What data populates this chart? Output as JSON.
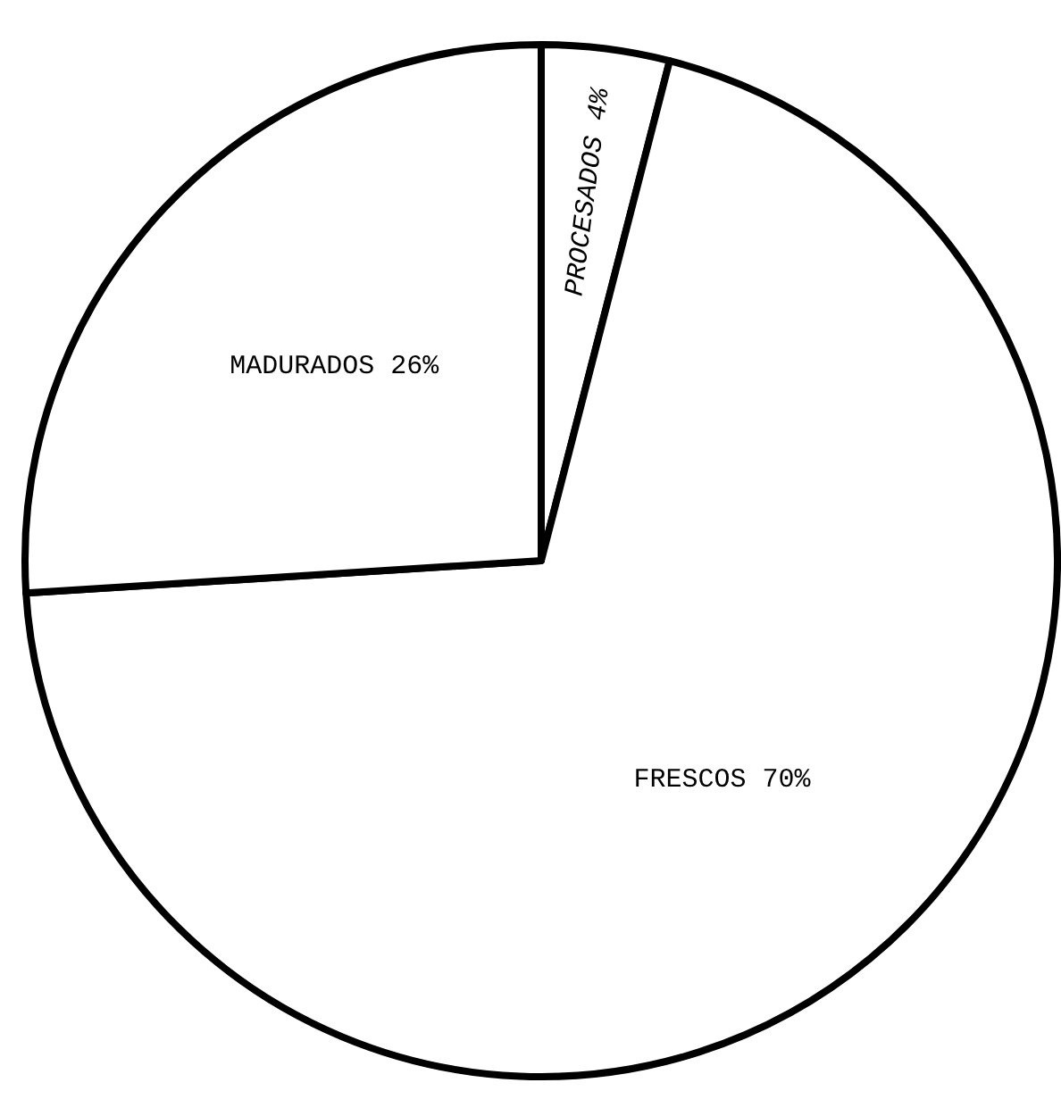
{
  "chart_data": {
    "type": "pie",
    "categories": [
      "PROCESADOS",
      "FRESCOS",
      "MADURADOS"
    ],
    "values": [
      4,
      70,
      26
    ],
    "value_labels": [
      "4%",
      "70%",
      "26%"
    ],
    "colors": [
      "#ffffff",
      "#ffffff",
      "#ffffff"
    ]
  }
}
